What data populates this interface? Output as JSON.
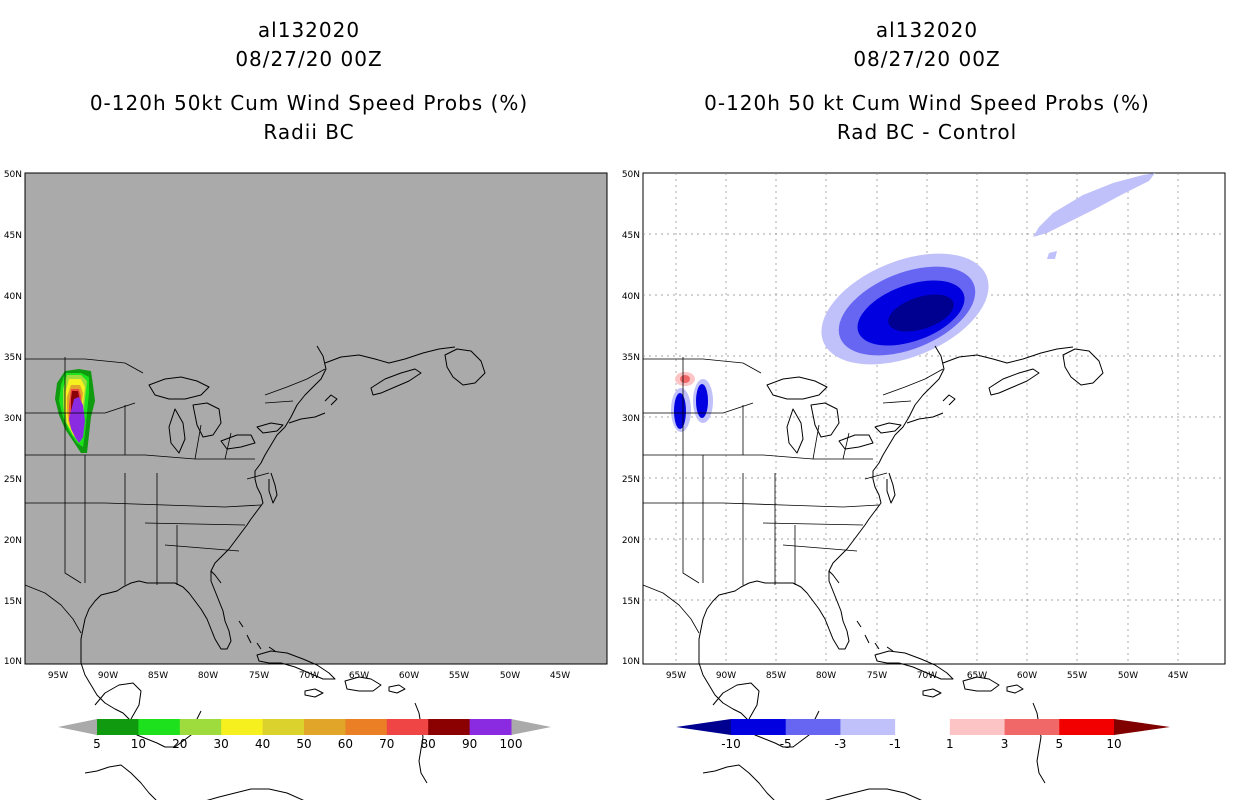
{
  "left_panel": {
    "title_lines": [
      "al132020",
      "08/27/20 00Z",
      "0-120h 50kt Cum Wind Speed Probs (%)",
      "Radii BC"
    ],
    "background_color": "#aaaaaa",
    "colorbar": {
      "labels": [
        "5",
        "10",
        "20",
        "30",
        "40",
        "50",
        "60",
        "70",
        "80",
        "90",
        "100"
      ],
      "colors": [
        "#0f9a0f",
        "#1ee11e",
        "#9ddc3c",
        "#f6f01e",
        "#dbd22d",
        "#e0a529",
        "#ea7f25",
        "#f04545",
        "#8b0000",
        "#8a2be2"
      ]
    }
  },
  "right_panel": {
    "title_lines": [
      "al132020",
      "08/27/20 00Z",
      "0-120h 50 kt Cum Wind Speed Probs (%)",
      "Rad BC - Control"
    ],
    "background_color": "#ffffff",
    "colorbar": {
      "labels": [
        "-10",
        "-5",
        "-3",
        "-1",
        "1",
        "3",
        "5",
        "10"
      ],
      "colors": [
        "#0000e0",
        "#6666f2",
        "#c0c0fa",
        "#ffffff",
        "#fcc4c4",
        "#f16868",
        "#f20000"
      ],
      "end_colors": [
        "#000090",
        "#800000"
      ]
    }
  },
  "map": {
    "lat_labels": [
      "50N",
      "45N",
      "40N",
      "35N",
      "30N",
      "25N",
      "20N",
      "15N",
      "10N"
    ],
    "lon_labels": [
      "95W",
      "90W",
      "85W",
      "80W",
      "75W",
      "70W",
      "65W",
      "60W",
      "55W",
      "50W",
      "45W"
    ]
  }
}
